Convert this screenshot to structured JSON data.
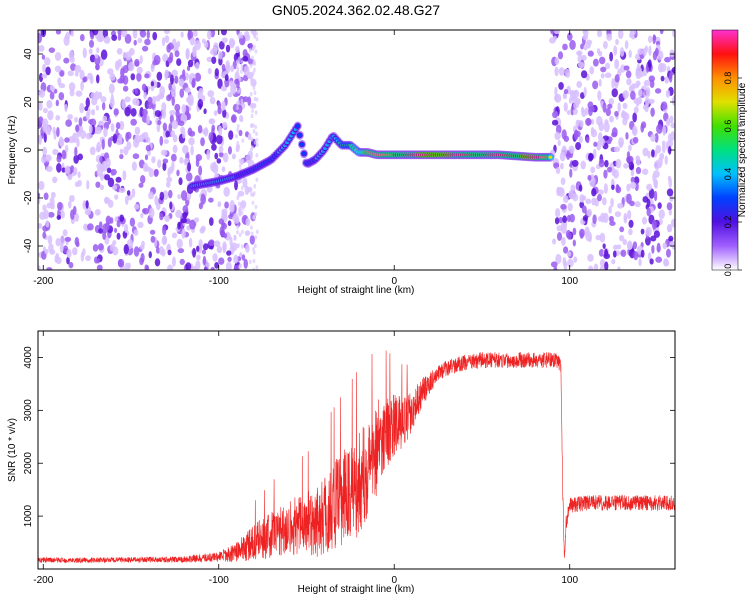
{
  "title": "GN05.2024.362.02.48.G27",
  "chart_data": [
    {
      "type": "heatmap",
      "xlabel": "Height of straight line (km)",
      "ylabel": "Frequency (Hz)",
      "xlim": [
        -203,
        160
      ],
      "ylim": [
        -50,
        50
      ],
      "xticks": [
        -200,
        -100,
        0,
        100
      ],
      "yticks": [
        -40,
        -20,
        0,
        20,
        40
      ],
      "colorbar": {
        "label": "Normalized spectral amplitude",
        "range": [
          0,
          1
        ],
        "ticks": [
          0.0,
          0.2,
          0.4,
          0.6,
          0.8
        ],
        "colormap": [
          "#ffffff",
          "#a060ff",
          "#5010e0",
          "#0040ff",
          "#00c0ff",
          "#00e080",
          "#40e000",
          "#e0e000",
          "#ff9000",
          "#ff1010",
          "#ff30d0"
        ]
      },
      "noise_regions_km": [
        [
          -203,
          -80
        ],
        [
          90,
          160
        ]
      ],
      "ridge": {
        "x_km": [
          -115,
          -100,
          -90,
          -80,
          -70,
          -62,
          -55,
          -50,
          -45,
          -40,
          -35,
          -30,
          -25,
          -20,
          -15,
          -10,
          0,
          20,
          40,
          60,
          80,
          90
        ],
        "freq_hz": [
          -15,
          -13,
          -11,
          -8,
          -4,
          2,
          10,
          -6,
          -4,
          0,
          6,
          2,
          2,
          -1,
          -1,
          -2,
          -2,
          -2,
          -2,
          -2,
          -3,
          -3
        ],
        "amplitude": [
          0.35,
          0.4,
          0.35,
          0.3,
          0.3,
          0.4,
          0.35,
          0.3,
          0.35,
          0.35,
          0.35,
          0.5,
          0.55,
          0.7,
          0.8,
          0.75,
          0.85,
          0.95,
          0.9,
          0.85,
          0.95,
          0.7
        ]
      }
    },
    {
      "type": "line",
      "xlabel": "Height of straight line (km)",
      "ylabel": "SNR (10 * v/v)",
      "xlim": [
        -203,
        160
      ],
      "ylim": [
        0,
        4500
      ],
      "xticks": [
        -200,
        -100,
        0,
        100
      ],
      "yticks": [
        1000,
        2000,
        3000,
        4000
      ],
      "color": "#ee2222",
      "series": [
        {
          "x": [
            -203,
            -180,
            -150,
            -120,
            -100,
            -90,
            -80,
            -70,
            -60,
            -50,
            -40,
            -30,
            -20,
            -15,
            -10,
            -5,
            0,
            5,
            10,
            15,
            20,
            25,
            30,
            40,
            50,
            60,
            70,
            80,
            90,
            93,
            95,
            96,
            97,
            98,
            100,
            110,
            120,
            130,
            140,
            150,
            160
          ],
          "values": [
            170,
            165,
            175,
            180,
            230,
            320,
            500,
            650,
            800,
            850,
            1000,
            1300,
            1600,
            1900,
            2300,
            2600,
            2700,
            2750,
            3000,
            3300,
            3500,
            3700,
            3800,
            3900,
            3950,
            3950,
            3950,
            3950,
            3950,
            3950,
            3800,
            1500,
            150,
            900,
            1200,
            1250,
            1250,
            1250,
            1250,
            1250,
            1250
          ],
          "spread": [
            50,
            50,
            50,
            60,
            100,
            180,
            350,
            450,
            550,
            600,
            800,
            900,
            1000,
            900,
            900,
            700,
            600,
            500,
            400,
            300,
            200,
            150,
            150,
            150,
            150,
            150,
            150,
            150,
            150,
            150,
            150,
            150,
            100,
            150,
            150,
            150,
            150,
            150,
            150,
            150,
            150
          ]
        }
      ]
    }
  ]
}
